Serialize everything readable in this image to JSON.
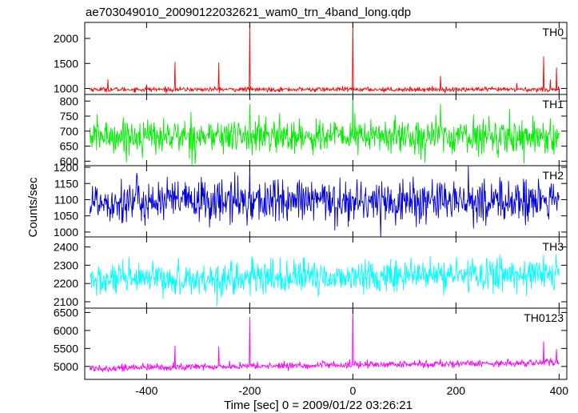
{
  "figure": {
    "title": "ae703049010_20090122032621_wam0_trn_4band_long.qdp",
    "xlabel": "Time [sec] 0 = 2009/01/22 03:26:21",
    "ylabel": "Counts/sec"
  },
  "chart_data": [
    {
      "type": "line",
      "panel_label": "TH0",
      "color": "#ff0000",
      "xlim": [
        -520,
        415
      ],
      "ylim": [
        880,
        2320
      ],
      "yticks": [
        1000,
        1500,
        2000
      ],
      "baseline": 980,
      "noise": 25,
      "trend": 0,
      "x_range": [
        -510,
        400
      ],
      "spikes": [
        {
          "x": -475,
          "y": 1180
        },
        {
          "x": -400,
          "y": 1080
        },
        {
          "x": -345,
          "y": 1530
        },
        {
          "x": -260,
          "y": 1520
        },
        {
          "x": -200,
          "y": 2260
        },
        {
          "x": 0,
          "y": 2310
        },
        {
          "x": 170,
          "y": 1250
        },
        {
          "x": 318,
          "y": 1110
        },
        {
          "x": 370,
          "y": 1640
        },
        {
          "x": 383,
          "y": 1180
        },
        {
          "x": 395,
          "y": 1420
        }
      ]
    },
    {
      "type": "line",
      "panel_label": "TH1",
      "color": "#00ee00",
      "xlim": [
        -520,
        415
      ],
      "ylim": [
        585,
        822
      ],
      "yticks": [
        600,
        650,
        700,
        750,
        800
      ],
      "baseline": 683,
      "noise": 32,
      "trend": 0,
      "x_range": [
        -510,
        400
      ],
      "spikes": [
        {
          "x": -200,
          "y": 790
        },
        {
          "x": 0,
          "y": 822
        },
        {
          "x": 170,
          "y": 790
        }
      ]
    },
    {
      "type": "line",
      "panel_label": "TH2",
      "color": "#0000dd",
      "xlim": [
        -520,
        415
      ],
      "ylim": [
        985,
        1205
      ],
      "yticks": [
        1000,
        1050,
        1100,
        1150,
        1200
      ],
      "baseline": 1095,
      "noise": 38,
      "trend": 0,
      "x_range": [
        -510,
        400
      ],
      "spikes": [
        {
          "x": -200,
          "y": 1200
        }
      ]
    },
    {
      "type": "line",
      "panel_label": "TH3",
      "color": "#00ffff",
      "xlim": [
        -520,
        415
      ],
      "ylim": [
        2065,
        2455
      ],
      "yticks": [
        2100,
        2200,
        2300,
        2400
      ],
      "baseline": 2215,
      "noise": 50,
      "trend": 40,
      "x_range": [
        -510,
        400
      ],
      "spikes": []
    },
    {
      "type": "line",
      "panel_label": "TH0123",
      "color": "#ff00ff",
      "xlim": [
        -520,
        415
      ],
      "ylim": [
        4640,
        6620
      ],
      "yticks": [
        5000,
        5500,
        6000,
        6500
      ],
      "baseline": 4950,
      "noise": 55,
      "trend": 160,
      "x_range": [
        -510,
        400
      ],
      "spikes": [
        {
          "x": -345,
          "y": 5580
        },
        {
          "x": -260,
          "y": 5560
        },
        {
          "x": -200,
          "y": 6380
        },
        {
          "x": 0,
          "y": 6620
        },
        {
          "x": 370,
          "y": 5700
        },
        {
          "x": 395,
          "y": 5480
        }
      ]
    }
  ],
  "x_axis": {
    "ticks": [
      -400,
      -200,
      0,
      200,
      400
    ]
  }
}
